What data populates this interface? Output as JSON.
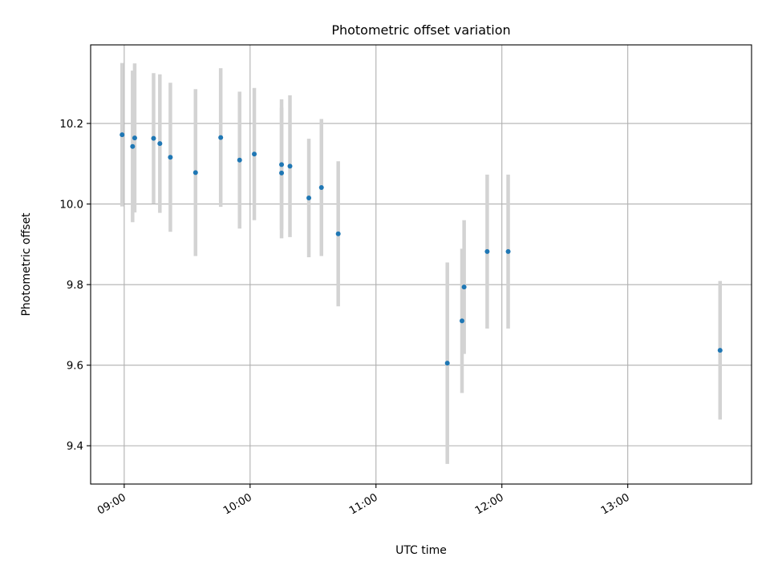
{
  "chart_data": {
    "type": "scatter",
    "title": "Photometric offset variation",
    "xlabel": "UTC time",
    "ylabel": "Photometric offset",
    "x_unit": "UTC time of day",
    "xlim": [
      "08:44",
      "13:59"
    ],
    "ylim": [
      9.305,
      10.395
    ],
    "xticks": [
      "09:00",
      "10:00",
      "11:00",
      "12:00",
      "13:00"
    ],
    "yticks": [
      9.4,
      9.6,
      9.8,
      10.0,
      10.2
    ],
    "ytick_labels": [
      "9.4",
      "9.6",
      "9.8",
      "10.0",
      "10.2"
    ],
    "grid": true,
    "legend": "none",
    "colors": {
      "points": "#1f77b4",
      "error_bars": "#d3d3d3",
      "grid": "#b0b0b0"
    },
    "points": [
      {
        "x": "08:59",
        "y": 10.172,
        "yerr": 0.178
      },
      {
        "x": "09:04",
        "y": 10.143,
        "yerr": 0.188
      },
      {
        "x": "09:05",
        "y": 10.164,
        "yerr": 0.185
      },
      {
        "x": "09:14",
        "y": 10.163,
        "yerr": 0.162
      },
      {
        "x": "09:17",
        "y": 10.15,
        "yerr": 0.172
      },
      {
        "x": "09:22",
        "y": 10.116,
        "yerr": 0.185
      },
      {
        "x": "09:34",
        "y": 10.078,
        "yerr": 0.207
      },
      {
        "x": "09:46",
        "y": 10.165,
        "yerr": 0.172
      },
      {
        "x": "09:55",
        "y": 10.109,
        "yerr": 0.17
      },
      {
        "x": "10:02",
        "y": 10.124,
        "yerr": 0.164
      },
      {
        "x": "10:15",
        "y": 10.098,
        "yerr": 0.162
      },
      {
        "x": "10:15",
        "y": 10.077,
        "yerr": 0.162
      },
      {
        "x": "10:19",
        "y": 10.094,
        "yerr": 0.176
      },
      {
        "x": "10:28",
        "y": 10.015,
        "yerr": 0.147
      },
      {
        "x": "10:34",
        "y": 10.041,
        "yerr": 0.17
      },
      {
        "x": "10:42",
        "y": 9.926,
        "yerr": 0.18
      },
      {
        "x": "11:34",
        "y": 9.605,
        "yerr": 0.25
      },
      {
        "x": "11:41",
        "y": 9.71,
        "yerr": 0.179
      },
      {
        "x": "11:42",
        "y": 9.794,
        "yerr": 0.166
      },
      {
        "x": "11:53",
        "y": 9.882,
        "yerr": 0.191
      },
      {
        "x": "12:03",
        "y": 9.882,
        "yerr": 0.191
      },
      {
        "x": "13:44",
        "y": 9.637,
        "yerr": 0.172
      }
    ]
  }
}
